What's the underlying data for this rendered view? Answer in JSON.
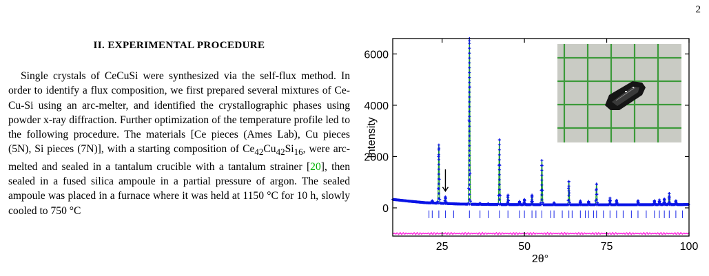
{
  "page_number": "2",
  "section": {
    "heading": "II.   EXPERIMENTAL PROCEDURE",
    "paragraph_parts": [
      "Single crystals of CeCuSi were synthesized via the self-flux method. In order to identify a flux composition, we first prepared several mixtures of Ce-Cu-Si using an arc-melter, and identified the crystallographic phases using powder x-ray diffraction. Further optimization of the temperature profile led to the following procedure. The materials [Ce pieces (Ames Lab), Cu pieces (5N), Si pieces (7N)], with a starting composition of Ce",
      "42",
      "Cu",
      "42",
      "Si",
      "16",
      ", were arc-melted and sealed in a tantalum crucible with a tantalum strainer [",
      "20",
      "], then sealed in a fused silica ampoule in a partial pressure of argon. The sealed ampoule was placed in a furnace where it was held at 1150 °C for 10 h, slowly cooled to 750 °C"
    ]
  },
  "colors": {
    "observed": "#0a14e6",
    "calculated": "#1f9e2a",
    "difference": "#ff22dd",
    "bragg_ticks": "#2a36e8",
    "citation": "#00b000"
  },
  "inset_photo": {
    "subject": "black CeCuSi single crystal on green grid paper"
  },
  "chart_data": {
    "type": "line",
    "xlabel": "2θ°",
    "ylabel": "Intensity",
    "xlim": [
      10,
      100
    ],
    "ylim": [
      -1100,
      6600
    ],
    "xticks": [
      "25",
      "50",
      "75",
      "100"
    ],
    "yticks": [
      "0",
      "2000",
      "4000",
      "6000"
    ],
    "xtick_values": [
      25,
      50,
      75,
      100
    ],
    "ytick_values": [
      0,
      2000,
      4000,
      6000
    ],
    "background": [
      [
        10,
        330
      ],
      [
        15,
        260
      ],
      [
        20,
        200
      ],
      [
        30,
        150
      ],
      [
        40,
        130
      ],
      [
        60,
        120
      ],
      [
        80,
        120
      ],
      [
        100,
        130
      ]
    ],
    "peaks": [
      {
        "x": 22.0,
        "y": 280
      },
      {
        "x": 24.0,
        "y": 2450
      },
      {
        "x": 26.0,
        "y": 430
      },
      {
        "x": 33.3,
        "y": 6600
      },
      {
        "x": 36.5,
        "y": 180
      },
      {
        "x": 39.0,
        "y": 160
      },
      {
        "x": 42.4,
        "y": 2650
      },
      {
        "x": 45.0,
        "y": 500
      },
      {
        "x": 48.5,
        "y": 250
      },
      {
        "x": 50.0,
        "y": 330
      },
      {
        "x": 52.3,
        "y": 500
      },
      {
        "x": 55.3,
        "y": 1850
      },
      {
        "x": 59.0,
        "y": 200
      },
      {
        "x": 63.5,
        "y": 1030
      },
      {
        "x": 67.0,
        "y": 270
      },
      {
        "x": 69.5,
        "y": 250
      },
      {
        "x": 71.9,
        "y": 930
      },
      {
        "x": 76.0,
        "y": 380
      },
      {
        "x": 78.0,
        "y": 300
      },
      {
        "x": 84.5,
        "y": 280
      },
      {
        "x": 89.5,
        "y": 280
      },
      {
        "x": 91.0,
        "y": 310
      },
      {
        "x": 92.5,
        "y": 350
      },
      {
        "x": 94.0,
        "y": 560
      },
      {
        "x": 96.0,
        "y": 280
      }
    ],
    "bragg_positions": [
      21.0,
      22.0,
      24.0,
      26.0,
      28.5,
      33.3,
      36.5,
      39.0,
      42.4,
      45.0,
      48.5,
      50.0,
      52.3,
      53.5,
      55.3,
      58.0,
      59.0,
      61.5,
      63.5,
      64.5,
      67.0,
      68.5,
      69.5,
      71.0,
      71.9,
      74.0,
      76.0,
      78.0,
      80.0,
      82.5,
      84.5,
      87.0,
      89.5,
      91.0,
      92.5,
      94.0,
      96.0,
      98.0
    ],
    "bragg_tick_level": -100,
    "bragg_tick_length": 300,
    "difference_offset": -1000,
    "arrow_annotation": {
      "x": 26.0,
      "y_top": 1500,
      "y_bottom": 650
    }
  }
}
